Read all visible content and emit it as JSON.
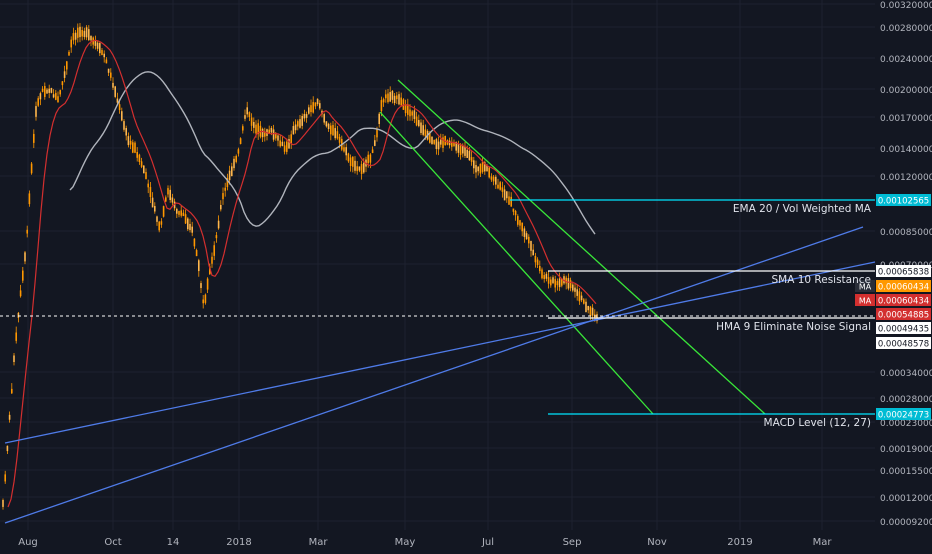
{
  "chart_data": {
    "type": "candlestick",
    "x_ticks": [
      "Aug",
      "Oct",
      "14",
      "2018",
      "Mar",
      "May",
      "Jul",
      "Sep",
      "Nov",
      "2019",
      "Mar"
    ],
    "y_ticks": [
      "0.00320000",
      "0.00280000",
      "0.00240000",
      "0.00200000",
      "0.00170000",
      "0.00140000",
      "0.00120000",
      "0.00085000",
      "0.00070000",
      "0.00034000",
      "0.00028000",
      "0.00023000",
      "0.00019000",
      "0.00015500",
      "0.00012000",
      "0.00009200"
    ],
    "y_scale": "log",
    "price_badges": [
      {
        "value": "0.00102565",
        "color": "#00bcd4"
      },
      {
        "value": "0.00065838",
        "color": "#ffffff"
      },
      {
        "value": "0.00060434",
        "color": "#ff9800",
        "tag": "MA"
      },
      {
        "value": "0.00060434",
        "color": "#d32f2f",
        "tag": "MA"
      },
      {
        "value": "0.00054885",
        "color": "#d32f2f"
      },
      {
        "value": "0.00049435",
        "color": "#ffffff"
      },
      {
        "value": "0.00048578",
        "color": "#ffffff"
      },
      {
        "value": "0.00024773",
        "color": "#00bcd4"
      }
    ],
    "annotations": [
      "EMA 20 / Vol Weighted MA",
      "SMA 10 Resistance",
      "HMA 9 Eliminate Noise Signal",
      "MACD Level (12, 27)"
    ],
    "series": [
      {
        "kind": "candles",
        "up_color": "#ff9800",
        "down_color": "#ff9800"
      },
      {
        "kind": "ma",
        "color": "#b0b4bc"
      },
      {
        "kind": "ma",
        "color": "#d32f2f"
      }
    ],
    "drawn_lines": [
      "cyan horizontal levels",
      "green descending channel",
      "blue ascending trendlines"
    ]
  }
}
